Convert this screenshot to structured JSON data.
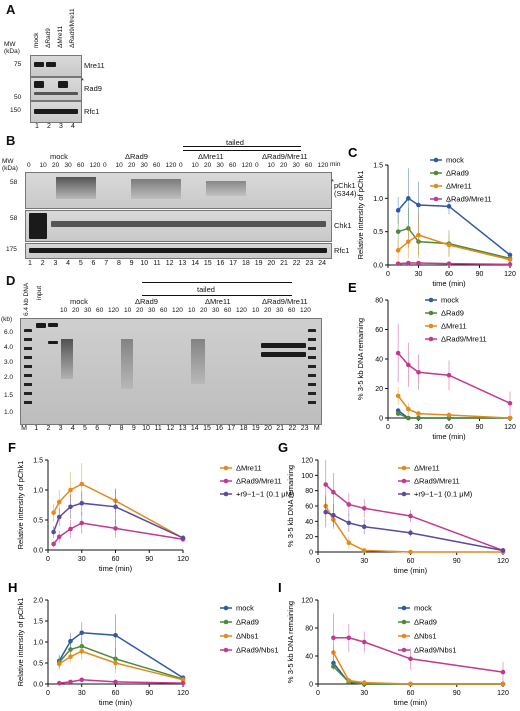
{
  "panels": {
    "A": {
      "letter": "A",
      "mw_label": "MW\n(kDa)",
      "lanes": [
        "mock",
        "ΔRad9",
        "ΔMre11",
        "ΔRad9/Mre11"
      ],
      "lane_numbers": [
        "1",
        "2",
        "3",
        "4"
      ],
      "markers": [
        "75",
        "50",
        "150"
      ],
      "proteins": [
        "Mre11",
        "Rad9",
        "Rfc1"
      ],
      "asterisk": "*"
    },
    "B": {
      "letter": "B",
      "tailed": "tailed",
      "groups": [
        "mock",
        "ΔRad9",
        "ΔMre11",
        "ΔRad9/Mre11"
      ],
      "times": [
        "0",
        "10",
        "20",
        "30",
        "60",
        "120"
      ],
      "time_unit": "min",
      "mw_label": "MW\n(kDa)",
      "markers": [
        "58",
        "58",
        "175"
      ],
      "proteins": [
        "pChk1\n(S344)",
        "Chk1",
        "Rfc1"
      ],
      "asterisk": "*",
      "lane_numbers": [
        "1",
        "2",
        "3",
        "4",
        "5",
        "6",
        "7",
        "8",
        "9",
        "10",
        "11",
        "12",
        "13",
        "14",
        "15",
        "16",
        "17",
        "18",
        "19",
        "20",
        "21",
        "22",
        "23",
        "24"
      ]
    },
    "D": {
      "letter": "D",
      "tailed": "tailed",
      "groups": [
        "mock",
        "ΔRad9",
        "ΔMre11",
        "ΔRad9/Mre11"
      ],
      "times": [
        "10",
        "20",
        "30",
        "60",
        "120"
      ],
      "ladder_label": "(kb)",
      "dna_label": "6.4 kb DNA",
      "input_label": "input",
      "markers": [
        "6.0",
        "4.0",
        "3.0",
        "2.0",
        "1.5",
        "1.0"
      ],
      "lane_numbers": [
        "M",
        "1",
        "2",
        "3",
        "4",
        "5",
        "6",
        "7",
        "8",
        "9",
        "10",
        "11",
        "12",
        "13",
        "14",
        "15",
        "16",
        "17",
        "18",
        "19",
        "20",
        "21",
        "22",
        "23",
        "M"
      ]
    }
  },
  "chart_data": [
    {
      "panel": "C",
      "type": "line",
      "xlabel": "time (min)",
      "ylabel": "Relative intensity of pChk1",
      "xlim": [
        0,
        120
      ],
      "ylim": [
        0,
        1.5
      ],
      "xticks": [
        0,
        30,
        60,
        90,
        120
      ],
      "yticks": [
        0.0,
        0.5,
        1.0,
        1.5
      ],
      "series": [
        {
          "name": "mock",
          "color": "#2e59a6",
          "x": [
            10,
            20,
            30,
            60,
            120
          ],
          "y": [
            0.82,
            1.0,
            0.9,
            0.88,
            0.15
          ],
          "err": [
            0.2,
            0.45,
            0.35,
            0.12,
            0.05
          ]
        },
        {
          "name": "ΔRad9",
          "color": "#4a8a3a",
          "x": [
            10,
            20,
            30,
            60,
            120
          ],
          "y": [
            0.5,
            0.55,
            0.35,
            0.32,
            0.1
          ],
          "err": [
            0.25,
            0.3,
            0.2,
            0.2,
            0.05
          ]
        },
        {
          "name": "ΔMre11",
          "color": "#e38a1f",
          "x": [
            10,
            20,
            30,
            60,
            120
          ],
          "y": [
            0.22,
            0.35,
            0.45,
            0.3,
            0.08
          ],
          "err": [
            0.15,
            0.25,
            0.35,
            0.15,
            0.05
          ]
        },
        {
          "name": "ΔRad9/Mre11",
          "color": "#c2398f",
          "x": [
            10,
            20,
            30,
            60,
            120
          ],
          "y": [
            0.02,
            0.03,
            0.03,
            0.02,
            0.01
          ],
          "err": [
            0.02,
            0.03,
            0.02,
            0.02,
            0.01
          ]
        }
      ]
    },
    {
      "panel": "E",
      "type": "line",
      "xlabel": "time (min)",
      "ylabel": "% 3-5 kb DNA remaining",
      "xlim": [
        0,
        120
      ],
      "ylim": [
        0,
        80
      ],
      "xticks": [
        0,
        30,
        60,
        90,
        120
      ],
      "yticks": [
        0,
        20,
        40,
        60,
        80
      ],
      "series": [
        {
          "name": "mock",
          "color": "#2e59a6",
          "x": [
            10,
            20,
            30,
            60,
            120
          ],
          "y": [
            5,
            0,
            0,
            0,
            0
          ],
          "err": [
            2,
            0,
            0,
            0,
            0
          ]
        },
        {
          "name": "ΔRad9",
          "color": "#4a8a3a",
          "x": [
            10,
            20,
            30,
            60,
            120
          ],
          "y": [
            3,
            0,
            0,
            0,
            0
          ],
          "err": [
            2,
            0,
            0,
            0,
            0
          ]
        },
        {
          "name": "ΔMre11",
          "color": "#e38a1f",
          "x": [
            10,
            20,
            30,
            60,
            120
          ],
          "y": [
            15,
            6,
            3,
            2,
            0
          ],
          "err": [
            6,
            4,
            2,
            2,
            0
          ]
        },
        {
          "name": "ΔRad9/Mre11",
          "color": "#c2398f",
          "x": [
            10,
            20,
            30,
            60,
            120
          ],
          "y": [
            44,
            36,
            31,
            29,
            10
          ],
          "err": [
            20,
            15,
            12,
            10,
            8
          ]
        }
      ]
    },
    {
      "panel": "F",
      "type": "line",
      "xlabel": "time (min)",
      "ylabel": "Relative intensity of pChk1",
      "xlim": [
        0,
        120
      ],
      "ylim": [
        0,
        1.5
      ],
      "xticks": [
        0,
        30,
        60,
        90,
        120
      ],
      "yticks": [
        0.0,
        0.5,
        1.0,
        1.5
      ],
      "series": [
        {
          "name": "ΔMre11",
          "color": "#e38a1f",
          "x": [
            5,
            10,
            20,
            30,
            60,
            120
          ],
          "y": [
            0.62,
            0.8,
            1.0,
            1.1,
            0.82,
            0.2
          ],
          "err": [
            0.15,
            0.2,
            0.3,
            0.35,
            0.2,
            0.05
          ]
        },
        {
          "name": "ΔRad9/Mre11",
          "color": "#c2398f",
          "x": [
            5,
            10,
            20,
            30,
            60,
            120
          ],
          "y": [
            0.1,
            0.22,
            0.35,
            0.45,
            0.36,
            0.18
          ],
          "err": [
            0.05,
            0.1,
            0.15,
            0.18,
            0.15,
            0.05
          ]
        },
        {
          "name": "+r9−1−1 (0.1 μM)",
          "color": "#5a4aa0",
          "x": [
            5,
            10,
            20,
            30,
            60,
            120
          ],
          "y": [
            0.3,
            0.55,
            0.72,
            0.78,
            0.72,
            0.2
          ],
          "err": [
            0.1,
            0.15,
            0.2,
            0.2,
            0.3,
            0.05
          ]
        }
      ]
    },
    {
      "panel": "G",
      "type": "line",
      "xlabel": "time (min)",
      "ylabel": "% 3-5 kb DNA remaining",
      "xlim": [
        0,
        120
      ],
      "ylim": [
        0,
        120
      ],
      "xticks": [
        0,
        30,
        60,
        90,
        120
      ],
      "yticks": [
        0,
        20,
        40,
        60,
        80,
        100,
        120
      ],
      "series": [
        {
          "name": "ΔMre11",
          "color": "#e38a1f",
          "x": [
            5,
            10,
            20,
            30,
            60,
            120
          ],
          "y": [
            60,
            42,
            12,
            2,
            0,
            0
          ],
          "err": [
            15,
            12,
            8,
            2,
            0,
            0
          ]
        },
        {
          "name": "ΔRad9/Mre11",
          "color": "#c2398f",
          "x": [
            5,
            10,
            20,
            30,
            60,
            120
          ],
          "y": [
            88,
            78,
            62,
            57,
            47,
            2
          ],
          "err": [
            35,
            25,
            15,
            12,
            8,
            2
          ]
        },
        {
          "name": "+r9−1−1 (0.1 μM)",
          "color": "#5a4aa0",
          "x": [
            5,
            10,
            20,
            30,
            60,
            120
          ],
          "y": [
            52,
            48,
            38,
            33,
            25,
            2
          ],
          "err": [
            20,
            15,
            12,
            10,
            5,
            2
          ]
        }
      ]
    },
    {
      "panel": "H",
      "type": "line",
      "xlabel": "time (min)",
      "ylabel": "Relative intensity of pChk1",
      "xlim": [
        0,
        120
      ],
      "ylim": [
        0,
        2.0
      ],
      "xticks": [
        0,
        30,
        60,
        90,
        120
      ],
      "yticks": [
        0.0,
        0.5,
        1.0,
        1.5,
        2.0
      ],
      "series": [
        {
          "name": "mock",
          "color": "#2e59a6",
          "x": [
            10,
            20,
            30,
            60,
            120
          ],
          "y": [
            0.55,
            1.02,
            1.22,
            1.16,
            0.15
          ],
          "err": [
            0.15,
            0.2,
            0.25,
            0.5,
            0.05
          ]
        },
        {
          "name": "ΔRad9",
          "color": "#4a8a3a",
          "x": [
            10,
            20,
            30,
            60,
            120
          ],
          "y": [
            0.52,
            0.82,
            0.9,
            0.6,
            0.12
          ],
          "err": [
            0.15,
            0.15,
            0.2,
            0.25,
            0.05
          ]
        },
        {
          "name": "ΔNbs1",
          "color": "#e38a1f",
          "x": [
            10,
            20,
            30,
            60,
            120
          ],
          "y": [
            0.48,
            0.65,
            0.78,
            0.5,
            0.1
          ],
          "err": [
            0.15,
            0.15,
            0.2,
            0.25,
            0.05
          ]
        },
        {
          "name": "ΔRad9/Nbs1",
          "color": "#c2398f",
          "x": [
            10,
            20,
            30,
            60,
            120
          ],
          "y": [
            0.02,
            0.05,
            0.1,
            0.05,
            0.02
          ],
          "err": [
            0.02,
            0.03,
            0.04,
            0.03,
            0.02
          ]
        }
      ]
    },
    {
      "panel": "I",
      "type": "line",
      "xlabel": "time (min)",
      "ylabel": "% 3-5 kb DNA remaining",
      "xlim": [
        0,
        120
      ],
      "ylim": [
        0,
        120
      ],
      "xticks": [
        0,
        30,
        60,
        90,
        120
      ],
      "yticks": [
        0,
        40,
        80,
        120
      ],
      "series": [
        {
          "name": "mock",
          "color": "#2e59a6",
          "x": [
            10,
            20,
            30,
            60,
            120
          ],
          "y": [
            30,
            2,
            0,
            0,
            0
          ],
          "err": [
            5,
            2,
            0,
            0,
            0
          ]
        },
        {
          "name": "ΔRad9",
          "color": "#4a8a3a",
          "x": [
            10,
            20,
            30,
            60,
            120
          ],
          "y": [
            25,
            3,
            0,
            0,
            0
          ],
          "err": [
            5,
            2,
            0,
            0,
            0
          ]
        },
        {
          "name": "ΔNbs1",
          "color": "#e38a1f",
          "x": [
            10,
            20,
            30,
            60,
            120
          ],
          "y": [
            45,
            5,
            2,
            0,
            0
          ],
          "err": [
            10,
            3,
            2,
            0,
            0
          ]
        },
        {
          "name": "ΔRad9/Nbs1",
          "color": "#c2398f",
          "x": [
            10,
            20,
            30,
            60,
            120
          ],
          "y": [
            66,
            66,
            60,
            36,
            17
          ],
          "err": [
            35,
            20,
            15,
            15,
            15
          ]
        }
      ]
    }
  ]
}
